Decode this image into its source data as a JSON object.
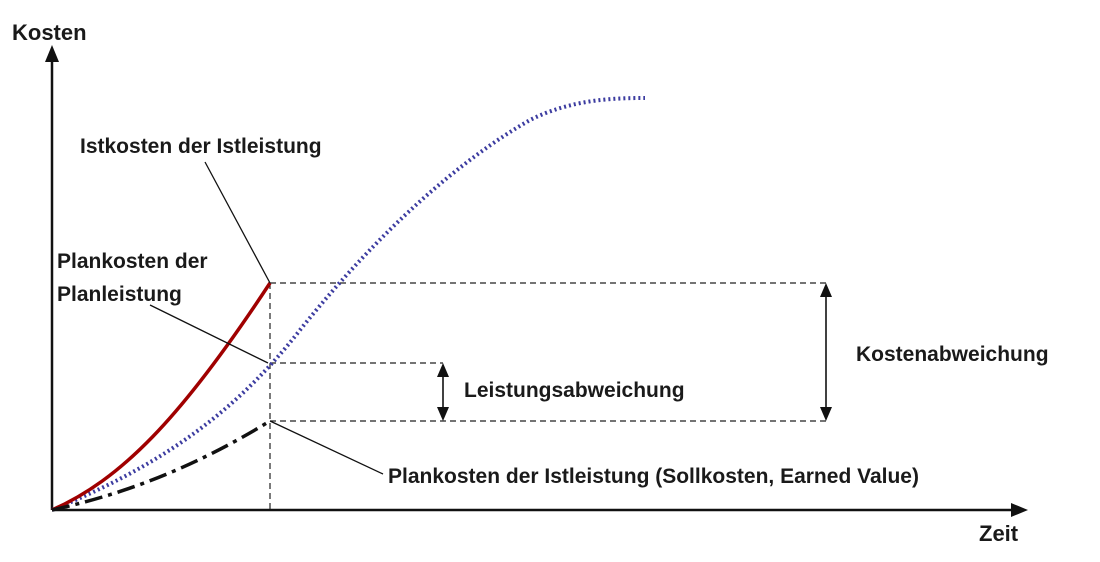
{
  "axes": {
    "y_label": "Kosten",
    "x_label": "Zeit"
  },
  "labels": {
    "istkosten": "Istkosten der Istleistung",
    "plankosten_plan_line1": "Plankosten der",
    "plankosten_plan_line2": "Planleistung",
    "leistungsabweichung": "Leistungsabweichung",
    "kostenabweichung": "Kostenabweichung",
    "earned_value": "Plankosten der Istleistung (Sollkosten, Earned Value)"
  },
  "colors": {
    "istkosten_curve": "#a00000",
    "plankosten_plan_curve": "#3c3ca0",
    "earned_value_curve": "#111111",
    "axis": "#111111"
  }
}
